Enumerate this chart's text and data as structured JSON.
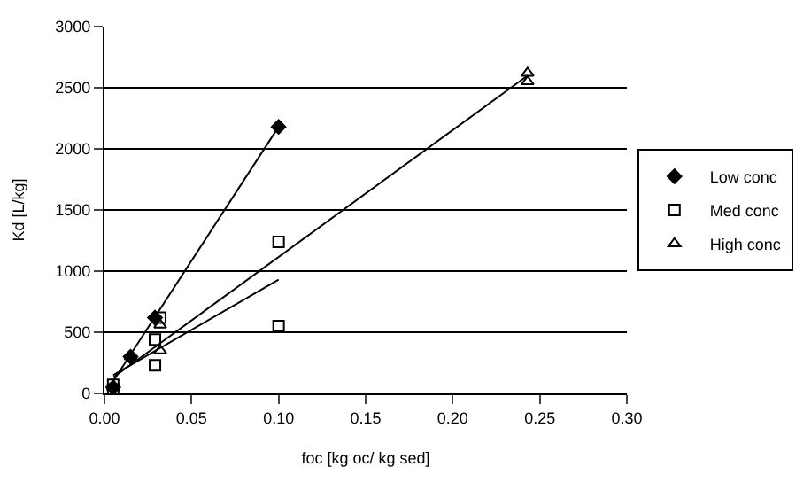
{
  "chart_data": {
    "type": "scatter",
    "xlabel": "foc [kg oc/ kg sed]",
    "ylabel": "Kd [L/kg]",
    "xlim": [
      0,
      0.3
    ],
    "xticks": [
      {
        "value": 0,
        "label": "0.00"
      },
      {
        "value": 0.05,
        "label": "0.05"
      },
      {
        "value": 0.1,
        "label": "0.10"
      },
      {
        "value": 0.15,
        "label": "0.15"
      },
      {
        "value": 0.2,
        "label": "0.20"
      },
      {
        "value": 0.25,
        "label": "0.25"
      },
      {
        "value": 0.3,
        "label": "0.30"
      }
    ],
    "ylim": [
      0,
      3000
    ],
    "yticks": [
      0,
      500,
      1000,
      1500,
      2000,
      2500,
      3000
    ],
    "grid": "y",
    "legend": "right",
    "series": [
      {
        "name": "Low conc",
        "color": "#000000",
        "marker": "diamond",
        "x": [
          0.005,
          0.015,
          0.029,
          0.1
        ],
        "values": [
          50,
          300,
          620,
          2180
        ]
      },
      {
        "name": "Med conc",
        "color": "#000000",
        "marker": "square",
        "x": [
          0.005,
          0.005,
          0.029,
          0.029,
          0.032,
          0.1,
          0.1
        ],
        "values": [
          30,
          70,
          230,
          440,
          620,
          1240,
          550
        ]
      },
      {
        "name": "High conc",
        "color": "#000000",
        "marker": "triangle",
        "x": [
          0.005,
          0.015,
          0.032,
          0.032,
          0.243,
          0.243
        ],
        "values": [
          50,
          300,
          560,
          350,
          2620,
          2550
        ]
      },
      {
        "type": "line",
        "color": "#000000",
        "marker": "none",
        "x": [
          0.005,
          0.1
        ],
        "values": [
          100,
          2180
        ]
      },
      {
        "type": "line",
        "color": "#000000",
        "marker": "none",
        "x": [
          0.005,
          0.1
        ],
        "values": [
          150,
          930
        ]
      },
      {
        "type": "line",
        "color": "#000000",
        "marker": "none",
        "x": [
          0.005,
          0.243
        ],
        "values": [
          130,
          2600
        ]
      }
    ]
  }
}
